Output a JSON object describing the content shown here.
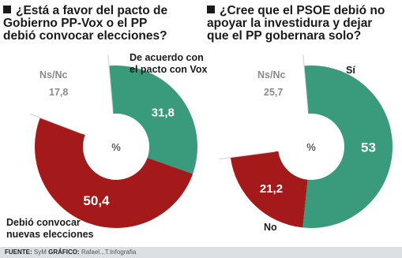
{
  "chart_data": [
    {
      "type": "pie",
      "title": "¿Está a favor del pacto de\nGobierno PP-Vox o el PP\ndebió convocar elecciones?",
      "center_label": "%",
      "slices": [
        {
          "label": "De acuerdo con\nel pacto con Vox",
          "value": 31.8,
          "value_text": "31,8",
          "color": "#3a9a7c"
        },
        {
          "label": "Debió convocar\nnuevas elecciones",
          "value": 50.4,
          "value_text": "50,4",
          "color": "#a41a1a"
        },
        {
          "label": "Ns/Nc",
          "value": 17.8,
          "value_text": "17,8",
          "color": "#ffffff"
        }
      ]
    },
    {
      "type": "pie",
      "title": "¿Cree que el PSOE debió no\napoyar la investidura y dejar\nque el PP gobernara solo?",
      "center_label": "%",
      "slices": [
        {
          "label": "Sí",
          "value": 53,
          "value_text": "53",
          "color": "#3a9a7c"
        },
        {
          "label": "No",
          "value": 21.2,
          "value_text": "21,2",
          "color": "#a41a1a"
        },
        {
          "label": "Ns/Nc",
          "value": 25.7,
          "value_text": "25,7",
          "color": "#ffffff"
        }
      ]
    }
  ],
  "footer": {
    "source_label": "FUENTE:",
    "source": "SyM",
    "graphic_label": "GRÁFICO:",
    "graphic": "Rafael...T.Infografia"
  }
}
